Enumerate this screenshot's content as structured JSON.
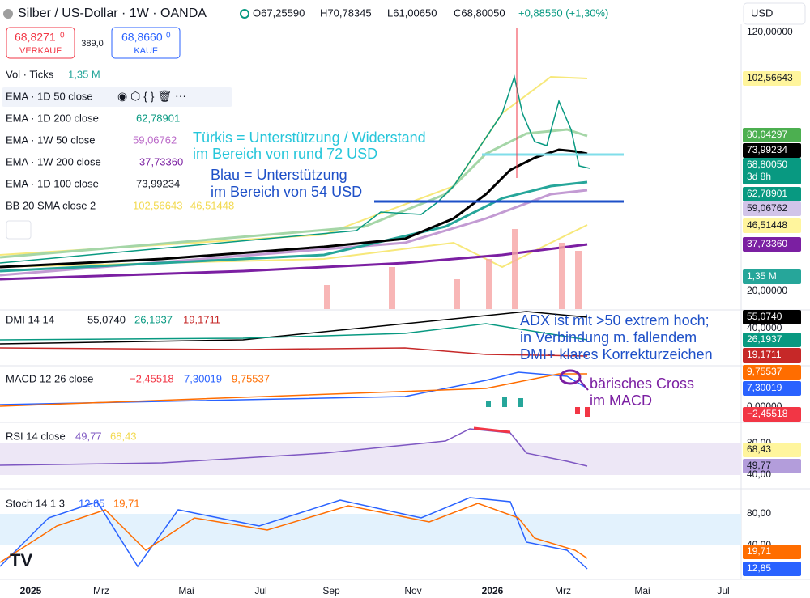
{
  "header": {
    "symbol": "Silber / US-Dollar · 1W · OANDA",
    "open": "O67,25590",
    "high": "H70,78345",
    "low": "L61,00650",
    "close": "C68,80050",
    "change": "+0,88550 (+1,30%)",
    "currency": "USD"
  },
  "trade": {
    "sell_price": "68,8271",
    "sell_sup": "0",
    "sell_label": "VERKAUF",
    "spread": "389,0",
    "buy_price": "68,8660",
    "buy_sup": "0",
    "buy_label": "KAUF"
  },
  "legend": [
    {
      "name": "Vol · Ticks",
      "value": "1,35 M"
    },
    {
      "name": "EMA · 1D 50 close"
    },
    {
      "name": "EMA · 1D 200 close",
      "value": "62,78901"
    },
    {
      "name": "EMA · 1W 50 close",
      "value": "59,06762"
    },
    {
      "name": "EMA · 1W 200 close",
      "value": "37,73360"
    },
    {
      "name": "EMA · 1D 100 close",
      "value": "73,99234"
    },
    {
      "name": "BB 20 SMA close 2",
      "value": "102,56643",
      "value2": "46,51448"
    }
  ],
  "annotations": {
    "tuerkis": [
      "Türkis = Unterstützung / Widerstand",
      "im Bereich von rund 72 USD"
    ],
    "blau": [
      "Blau = Unterstützung",
      "im Bereich von 54 USD"
    ],
    "adx": [
      "ADX ist mit >50 extrem hoch;",
      "in Verbindung m. fallendem",
      "DMI+ klares Korrekturzeichen"
    ],
    "macd": [
      "bärisches Cross",
      "im MACD"
    ]
  },
  "price_axis": [
    "120,00000",
    "102,56643",
    "80,04297",
    "73,99234",
    "68,80050",
    "3d 8h",
    "62,78901",
    "59,06762",
    "46,51448",
    "37,73360",
    "1,35 M",
    "20,00000"
  ],
  "panes": {
    "dmi": {
      "name": "DMI 14 14",
      "values": [
        "55,0740",
        "26,1937",
        "19,1711"
      ],
      "axis": [
        "55,0740",
        "40,0000",
        "26,1937",
        "19,1711"
      ]
    },
    "macd": {
      "name": "MACD 12 26 close",
      "values": [
        "−2,45518",
        "7,30019",
        "9,75537"
      ],
      "axis": [
        "9,75537",
        "7,30019",
        "0,00000",
        "−2,45518"
      ]
    },
    "rsi": {
      "name": "RSI 14 close",
      "values": [
        "49,77",
        "68,43"
      ],
      "axis": [
        "80,00",
        "68,43",
        "49,77",
        "40,00"
      ]
    },
    "stoch": {
      "name": "Stoch 14 1 3",
      "values": [
        "12,85",
        "19,71"
      ],
      "axis": [
        "80,00",
        "40,00",
        "19,71",
        "12,85"
      ]
    }
  },
  "time_axis": [
    "2025",
    "Mrz",
    "Mai",
    "Jul",
    "Sep",
    "Nov",
    "2026",
    "Mrz",
    "Mai",
    "Jul"
  ]
}
